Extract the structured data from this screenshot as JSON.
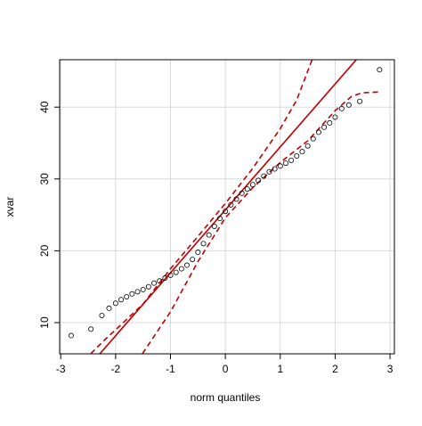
{
  "chart_data": {
    "type": "scatter",
    "x_label": "norm quantiles",
    "y_label": "xvar",
    "x": [
      -2.81,
      -2.45,
      -2.25,
      -2.12,
      -2.0,
      -1.9,
      -1.8,
      -1.7,
      -1.6,
      -1.5,
      -1.4,
      -1.3,
      -1.2,
      -1.1,
      -1.0,
      -0.9,
      -0.8,
      -0.7,
      -0.6,
      -0.5,
      -0.4,
      -0.3,
      -0.2,
      -0.1,
      0.0,
      0.1,
      0.2,
      0.3,
      0.4,
      0.5,
      0.6,
      0.7,
      0.8,
      0.9,
      1.0,
      1.1,
      1.2,
      1.3,
      1.4,
      1.5,
      1.6,
      1.7,
      1.8,
      1.9,
      2.0,
      2.12,
      2.25,
      2.45,
      2.81
    ],
    "values": [
      8.2,
      9.1,
      11.0,
      12.0,
      12.7,
      13.2,
      13.6,
      14.0,
      14.3,
      14.6,
      15.0,
      15.5,
      15.8,
      16.2,
      16.6,
      17.0,
      17.5,
      18.0,
      18.8,
      19.8,
      21.0,
      22.2,
      23.4,
      24.5,
      25.5,
      26.4,
      27.2,
      28.0,
      28.6,
      29.2,
      29.8,
      30.4,
      31.0,
      31.4,
      31.8,
      32.2,
      32.6,
      33.2,
      33.8,
      34.6,
      35.6,
      36.5,
      37.2,
      37.8,
      38.6,
      39.8,
      40.3,
      40.8,
      45.2
    ],
    "point_color": "#000000",
    "reference_line": {
      "intercept": 25.7,
      "slope": 8.76,
      "color": "#c00000"
    },
    "envelope_upper": {
      "x": [
        -2.45,
        -2.2,
        -2.0,
        -1.5,
        -1.0,
        -0.5,
        0.0,
        0.5,
        1.0,
        1.3,
        1.58
      ],
      "values": [
        5.7,
        7.6,
        9.0,
        12.6,
        17.5,
        22.0,
        26.6,
        31.5,
        37.0,
        41.0,
        46.6
      ]
    },
    "envelope_lower": {
      "x": [
        -1.51,
        -1.0,
        -0.5,
        0.0,
        0.5,
        1.0,
        1.5,
        2.0,
        2.3,
        2.5,
        2.8
      ],
      "values": [
        5.7,
        11.5,
        18.5,
        24.6,
        28.8,
        32.3,
        35.3,
        39.5,
        41.5,
        42.0,
        42.1
      ]
    },
    "envelope_color": "#c00000",
    "xlim": [
      -3.02,
      3.08
    ],
    "ylim": [
      5.66,
      46.6
    ],
    "xticks": [
      -3,
      -2,
      -1,
      0,
      1,
      2,
      3
    ],
    "yticks": [
      10,
      20,
      30,
      40
    ],
    "grid": true
  }
}
